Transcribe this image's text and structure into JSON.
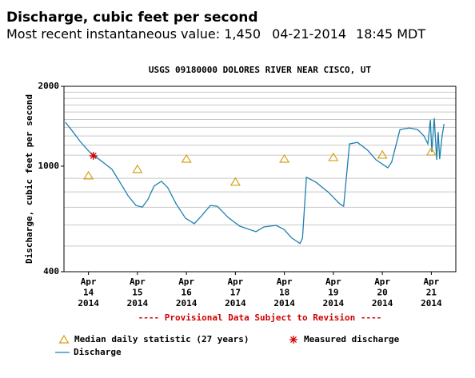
{
  "header": {
    "title": "Discharge, cubic feet per second",
    "recent_label": "Most recent instantaneous value:",
    "recent_value": "1,450",
    "date": "04-21-2014",
    "time": "18:45 MDT"
  },
  "chart_data": {
    "type": "line",
    "title": "USGS 09180000 DOLORES RIVER NEAR CISCO, UT",
    "y_label": "Discharge, cubic feet per second",
    "annotation": "---- Provisional Data Subject to Revision ----",
    "log_y": true,
    "grid": true,
    "ylim": [
      400,
      2000
    ],
    "yticks": [
      400,
      1000,
      2000
    ],
    "y_minor_ticks": [
      500,
      600,
      700,
      800,
      900,
      1100,
      1200,
      1300,
      1400,
      1500,
      1600,
      1700,
      1800,
      1900
    ],
    "xlim": [
      14,
      22
    ],
    "xticks": [
      {
        "value": 14.5,
        "label": [
          "Apr",
          "14",
          "2014"
        ]
      },
      {
        "value": 15.5,
        "label": [
          "Apr",
          "15",
          "2014"
        ]
      },
      {
        "value": 16.5,
        "label": [
          "Apr",
          "16",
          "2014"
        ]
      },
      {
        "value": 17.5,
        "label": [
          "Apr",
          "17",
          "2014"
        ]
      },
      {
        "value": 18.5,
        "label": [
          "Apr",
          "18",
          "2014"
        ]
      },
      {
        "value": 19.5,
        "label": [
          "Apr",
          "19",
          "2014"
        ]
      },
      {
        "value": 20.5,
        "label": [
          "Apr",
          "20",
          "2014"
        ]
      },
      {
        "value": 21.5,
        "label": [
          "Apr",
          "21",
          "2014"
        ]
      }
    ],
    "series": [
      {
        "name": "Median daily statistic (27 years)",
        "marker": "triangle",
        "color": "#d4a017",
        "x": [
          14.5,
          15.5,
          16.5,
          17.5,
          18.5,
          19.5,
          20.5,
          21.5
        ],
        "values": [
          920,
          973,
          1064,
          871,
          1064,
          1079,
          1102,
          1132
        ]
      },
      {
        "name": "Measured discharge",
        "marker": "asterisk",
        "color": "#d00000",
        "x": [
          14.6
        ],
        "values": [
          1094
        ]
      },
      {
        "name": "Discharge",
        "marker": "line",
        "color": "#1f7fb0",
        "x": [
          14.03,
          14.16,
          14.33,
          14.52,
          14.73,
          14.98,
          15.14,
          15.31,
          15.47,
          15.6,
          15.71,
          15.84,
          15.99,
          16.12,
          16.29,
          16.48,
          16.66,
          16.81,
          16.99,
          17.13,
          17.35,
          17.59,
          17.92,
          18.08,
          18.33,
          18.49,
          18.65,
          18.82,
          18.87,
          18.95,
          19.14,
          19.39,
          19.63,
          19.71,
          19.83,
          19.99,
          20.2,
          20.37,
          20.61,
          20.69,
          20.86,
          21.05,
          21.22,
          21.35,
          21.43,
          21.48,
          21.51,
          21.56,
          21.61,
          21.64,
          21.67,
          21.72,
          21.76
        ],
        "values": [
          1464,
          1365,
          1239,
          1132,
          1057,
          973,
          871,
          773,
          711,
          701,
          747,
          841,
          877,
          829,
          721,
          637,
          607,
          650,
          711,
          706,
          641,
          594,
          566,
          590,
          598,
          578,
          536,
          511,
          536,
          908,
          871,
          800,
          721,
          706,
          1213,
          1230,
          1148,
          1057,
          986,
          1035,
          1374,
          1393,
          1374,
          1300,
          1213,
          1493,
          1132,
          1516,
          1057,
          1345,
          1063,
          1300,
          1443
        ]
      }
    ]
  }
}
